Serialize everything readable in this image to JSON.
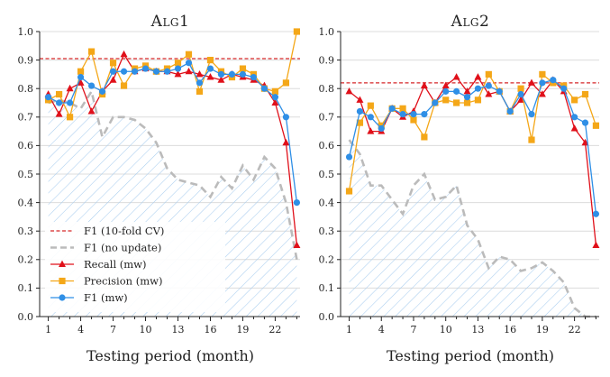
{
  "chart_data": [
    {
      "type": "line",
      "title": "Alg1",
      "xlabel": "Testing period (month)",
      "ylabel": "",
      "xlim": [
        0.2,
        24.3
      ],
      "ylim": [
        0.0,
        1.0
      ],
      "xticks": [
        1,
        4,
        7,
        10,
        13,
        16,
        19,
        22
      ],
      "yticks": [
        0.0,
        0.1,
        0.2,
        0.3,
        0.4,
        0.5,
        0.6,
        0.7,
        0.8,
        0.9,
        1.0
      ],
      "ytick_labels": [
        "0.0",
        "0.1",
        "0.2",
        "0.3",
        "0.4",
        "0.5",
        "0.6",
        "0.7",
        "0.8",
        "0.9",
        "1.0"
      ],
      "grid": "horizontal",
      "legend_position": "lower-left",
      "hline": {
        "name": "F1 (10-fold CV)",
        "value": 0.905,
        "color": "#d62728"
      },
      "series": [
        {
          "name": "F1 (no update)",
          "color": "#bbbbbb",
          "style": "dashed",
          "x": [
            1,
            2,
            3,
            4,
            5,
            6,
            7,
            8,
            9,
            10,
            11,
            12,
            13,
            14,
            15,
            16,
            17,
            18,
            19,
            20,
            21,
            22,
            23,
            24
          ],
          "values": [
            0.75,
            0.76,
            0.75,
            0.73,
            0.79,
            0.63,
            0.7,
            0.7,
            0.69,
            0.66,
            0.61,
            0.52,
            0.48,
            0.47,
            0.46,
            0.42,
            0.49,
            0.45,
            0.53,
            0.48,
            0.56,
            0.52,
            0.4,
            0.2
          ]
        },
        {
          "name": "Recall (mw)",
          "color": "#e0101a",
          "marker": "triangle",
          "x": [
            1,
            2,
            3,
            4,
            5,
            6,
            7,
            8,
            9,
            10,
            11,
            12,
            13,
            14,
            15,
            16,
            17,
            18,
            19,
            20,
            21,
            22,
            23,
            24
          ],
          "values": [
            0.78,
            0.71,
            0.8,
            0.82,
            0.72,
            0.79,
            0.83,
            0.92,
            0.86,
            0.87,
            0.86,
            0.86,
            0.85,
            0.86,
            0.85,
            0.84,
            0.83,
            0.85,
            0.84,
            0.83,
            0.81,
            0.75,
            0.61,
            0.25
          ]
        },
        {
          "name": "Precision (mw)",
          "color": "#f4a718",
          "marker": "square",
          "x": [
            1,
            2,
            3,
            4,
            5,
            6,
            7,
            8,
            9,
            10,
            11,
            12,
            13,
            14,
            15,
            16,
            17,
            18,
            19,
            20,
            21,
            22,
            23,
            24
          ],
          "values": [
            0.76,
            0.78,
            0.7,
            0.86,
            0.93,
            0.78,
            0.89,
            0.81,
            0.87,
            0.88,
            0.86,
            0.87,
            0.89,
            0.92,
            0.79,
            0.9,
            0.86,
            0.84,
            0.87,
            0.85,
            0.8,
            0.79,
            0.82,
            1.0
          ]
        },
        {
          "name": "F1 (mw)",
          "color": "#2f8fe6",
          "marker": "circle",
          "x": [
            1,
            2,
            3,
            4,
            5,
            6,
            7,
            8,
            9,
            10,
            11,
            12,
            13,
            14,
            15,
            16,
            17,
            18,
            19,
            20,
            21,
            22,
            23,
            24
          ],
          "values": [
            0.77,
            0.75,
            0.75,
            0.84,
            0.81,
            0.79,
            0.86,
            0.86,
            0.86,
            0.87,
            0.86,
            0.86,
            0.87,
            0.89,
            0.82,
            0.87,
            0.85,
            0.85,
            0.85,
            0.84,
            0.8,
            0.77,
            0.7,
            0.4
          ]
        }
      ]
    },
    {
      "type": "line",
      "title": "Alg2",
      "xlabel": "Testing period (month)",
      "ylabel": "",
      "xlim": [
        0.2,
        24.3
      ],
      "ylim": [
        0.0,
        1.0
      ],
      "xticks": [
        1,
        4,
        7,
        10,
        13,
        16,
        19,
        22
      ],
      "yticks": [
        0.0,
        0.1,
        0.2,
        0.3,
        0.4,
        0.5,
        0.6,
        0.7,
        0.8,
        0.9,
        1.0
      ],
      "ytick_labels": [
        "0.0",
        "0.1",
        "0.2",
        "0.3",
        "0.4",
        "0.5",
        "0.6",
        "0.7",
        "0.8",
        "0.9",
        "1.0"
      ],
      "grid": "horizontal",
      "hline": {
        "name": "F1 (10-fold CV)",
        "value": 0.82,
        "color": "#d62728"
      },
      "series": [
        {
          "name": "F1 (no update)",
          "color": "#bbbbbb",
          "style": "dashed",
          "x": [
            1,
            2,
            3,
            4,
            5,
            6,
            7,
            8,
            9,
            10,
            11,
            12,
            13,
            14,
            15,
            16,
            17,
            18,
            19,
            20,
            21,
            22,
            23,
            24
          ],
          "values": [
            0.62,
            0.57,
            0.46,
            0.46,
            0.41,
            0.36,
            0.46,
            0.5,
            0.41,
            0.42,
            0.46,
            0.32,
            0.27,
            0.17,
            0.21,
            0.2,
            0.16,
            0.17,
            0.19,
            0.16,
            0.12,
            0.03,
            0.0,
            0.0
          ]
        },
        {
          "name": "Recall (mw)",
          "color": "#e0101a",
          "marker": "triangle",
          "x": [
            1,
            2,
            3,
            4,
            5,
            6,
            7,
            8,
            9,
            10,
            11,
            12,
            13,
            14,
            15,
            16,
            17,
            18,
            19,
            20,
            21,
            22,
            23,
            24
          ],
          "values": [
            0.79,
            0.76,
            0.65,
            0.65,
            0.73,
            0.7,
            0.72,
            0.81,
            0.75,
            0.81,
            0.84,
            0.79,
            0.84,
            0.78,
            0.79,
            0.72,
            0.76,
            0.82,
            0.78,
            0.83,
            0.79,
            0.66,
            0.61,
            0.25
          ]
        },
        {
          "name": "Precision (mw)",
          "color": "#f4a718",
          "marker": "square",
          "x": [
            1,
            2,
            3,
            4,
            5,
            6,
            7,
            8,
            9,
            10,
            11,
            12,
            13,
            14,
            15,
            16,
            17,
            18,
            19,
            20,
            21,
            22,
            23,
            24
          ],
          "values": [
            0.44,
            0.68,
            0.74,
            0.67,
            0.73,
            0.73,
            0.69,
            0.63,
            0.75,
            0.76,
            0.75,
            0.75,
            0.76,
            0.85,
            0.79,
            0.72,
            0.8,
            0.62,
            0.85,
            0.82,
            0.81,
            0.76,
            0.78,
            0.67
          ]
        },
        {
          "name": "F1 (mw)",
          "color": "#2f8fe6",
          "marker": "circle",
          "x": [
            1,
            2,
            3,
            4,
            5,
            6,
            7,
            8,
            9,
            10,
            11,
            12,
            13,
            14,
            15,
            16,
            17,
            18,
            19,
            20,
            21,
            22,
            23,
            24
          ],
          "values": [
            0.56,
            0.72,
            0.7,
            0.66,
            0.73,
            0.71,
            0.71,
            0.71,
            0.75,
            0.79,
            0.79,
            0.77,
            0.8,
            0.81,
            0.79,
            0.72,
            0.78,
            0.71,
            0.82,
            0.83,
            0.8,
            0.7,
            0.68,
            0.36
          ]
        }
      ]
    }
  ]
}
